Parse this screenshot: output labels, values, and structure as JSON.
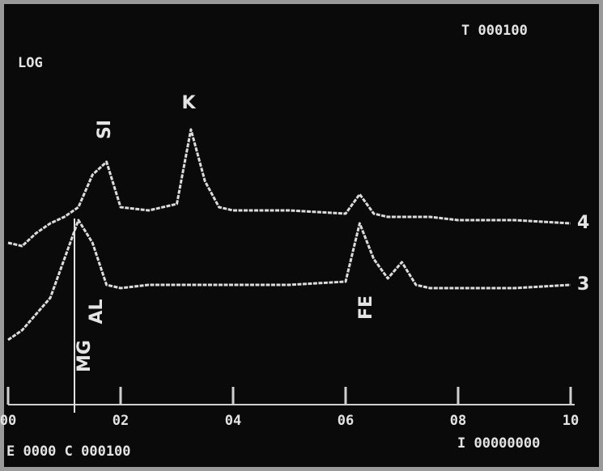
{
  "chart_data": {
    "type": "line",
    "top_label": "T 000100",
    "scale_label": "LOG",
    "bottom_left": "E 0000 C 000100",
    "bottom_right": "I 00000000",
    "annotations": [
      "SI",
      "K",
      "MG",
      "AL",
      "FE"
    ],
    "x": [
      0,
      0.25,
      0.5,
      0.75,
      1.0,
      1.25,
      1.5,
      1.75,
      2.0,
      2.5,
      3.0,
      3.25,
      3.5,
      3.75,
      4.0,
      5.0,
      6.0,
      6.25,
      6.5,
      6.75,
      7.0,
      7.25,
      7.5,
      8.0,
      9.0,
      10.0
    ],
    "series": [
      {
        "name": "4",
        "color": "#dcdcdc",
        "values": [
          55,
          54,
          58,
          61,
          63,
          66,
          76,
          80,
          66,
          65,
          67,
          90,
          74,
          66,
          65,
          65,
          64,
          70,
          64,
          63,
          63,
          63,
          63,
          62,
          62,
          61
        ]
      },
      {
        "name": "3",
        "color": "#dcdcdc",
        "values": [
          25,
          28,
          33,
          38,
          50,
          62,
          55,
          42,
          41,
          42,
          42,
          42,
          42,
          42,
          42,
          42,
          43,
          61,
          50,
          44,
          49,
          42,
          41,
          41,
          41,
          42
        ]
      }
    ],
    "xlim": [
      0,
      10
    ],
    "xticks": [
      {
        "value": 0,
        "label": "00"
      },
      {
        "value": 2,
        "label": "02"
      },
      {
        "value": 4,
        "label": "04"
      },
      {
        "value": 6,
        "label": "06"
      },
      {
        "value": 8,
        "label": "08"
      },
      {
        "value": 10,
        "label": "10"
      }
    ],
    "ylim": [
      0,
      100
    ]
  }
}
